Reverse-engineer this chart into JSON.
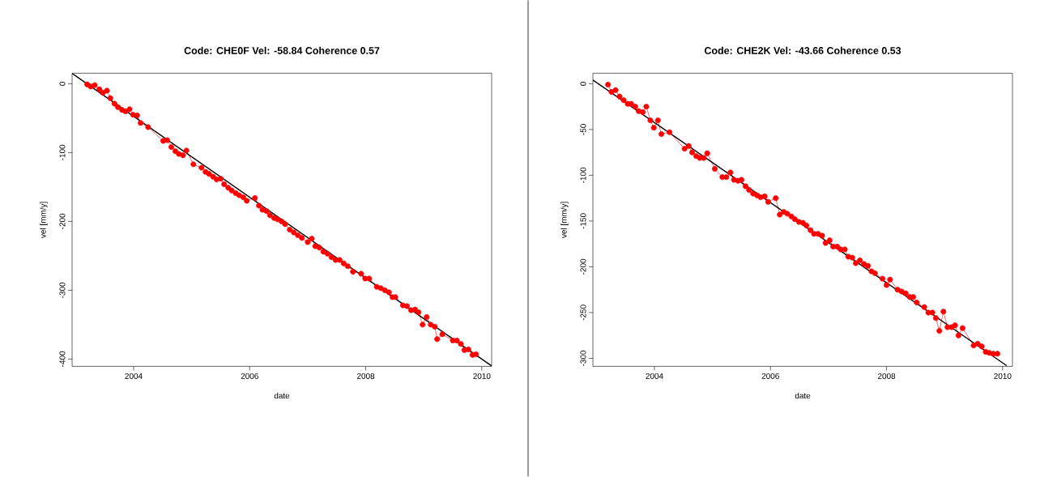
{
  "chart_data": [
    {
      "type": "line",
      "title": "Code: CHE0F Vel: -58.84 Coherence 0.57",
      "xlabel": "date",
      "ylabel": "vel [mm/y]",
      "xlim": [
        2002.94,
        2010.17
      ],
      "ylim": [
        -410.6,
        15.3
      ],
      "xticks": [
        2004,
        2006,
        2008,
        2010
      ],
      "yticks": [
        -400,
        -300,
        -200,
        -100,
        0
      ],
      "series": [
        {
          "color": "#ff0000",
          "marker": "circle",
          "x": [
            2003.2,
            2003.26,
            2003.33,
            2003.41,
            2003.47,
            2003.54,
            2003.6,
            2003.67,
            2003.73,
            2003.8,
            2003.86,
            2003.93,
            2003.99,
            2004.06,
            2004.12,
            2004.25,
            2004.51,
            2004.58,
            2004.65,
            2004.72,
            2004.78,
            2004.85,
            2004.91,
            2005.03,
            2005.17,
            2005.24,
            2005.3,
            2005.37,
            2005.43,
            2005.5,
            2005.56,
            2005.63,
            2005.69,
            2005.76,
            2005.82,
            2005.89,
            2005.95,
            2006.09,
            2006.16,
            2006.22,
            2006.29,
            2006.35,
            2006.42,
            2006.48,
            2006.55,
            2006.61,
            2006.69,
            2006.76,
            2006.83,
            2006.9,
            2007.0,
            2007.07,
            2007.13,
            2007.2,
            2007.27,
            2007.34,
            2007.41,
            2007.48,
            2007.55,
            2007.62,
            2007.69,
            2007.78,
            2007.92,
            2007.99,
            2008.06,
            2008.19,
            2008.26,
            2008.33,
            2008.4,
            2008.46,
            2008.51,
            2008.64,
            2008.71,
            2008.78,
            2008.85,
            2008.91,
            2008.98,
            2009.05,
            2009.12,
            2009.19,
            2009.23,
            2009.32,
            2009.5,
            2009.57,
            2009.64,
            2009.7,
            2009.77,
            2009.84,
            2009.9
          ],
          "values": [
            -1,
            -4,
            -2,
            -8,
            -13,
            -10,
            -21,
            -29,
            -34,
            -38,
            -40,
            -37,
            -45,
            -46,
            -57,
            -63,
            -83,
            -82,
            -92,
            -98,
            -102,
            -104,
            -97,
            -117,
            -122,
            -128,
            -131,
            -135,
            -139,
            -138,
            -146,
            -151,
            -155,
            -159,
            -162,
            -165,
            -170,
            -166,
            -177,
            -183,
            -185,
            -191,
            -195,
            -197,
            -200,
            -204,
            -212,
            -216,
            -220,
            -224,
            -230,
            -225,
            -236,
            -238,
            -244,
            -247,
            -252,
            -256,
            -256,
            -261,
            -265,
            -273,
            -276,
            -283,
            -283,
            -295,
            -297,
            -300,
            -303,
            -310,
            -310,
            -322,
            -323,
            -329,
            -328,
            -332,
            -350,
            -339,
            -350,
            -353,
            -371,
            -364,
            -373,
            -373,
            -378,
            -387,
            -386,
            -394,
            -393
          ]
        },
        {
          "type": "line",
          "color": "#000000",
          "marker": "none",
          "x": [
            2002.94,
            2010.17
          ],
          "values": [
            15,
            -410
          ]
        }
      ]
    },
    {
      "type": "line",
      "title": "Code: CHE2K Vel: -43.66 Coherence 0.53",
      "xlabel": "date",
      "ylabel": "vel [mm/y]",
      "xlim": [
        2002.94,
        2010.17
      ],
      "ylim": [
        -308.8,
        11.5
      ],
      "xticks": [
        2004,
        2006,
        2008,
        2010
      ],
      "yticks": [
        -300,
        -250,
        -200,
        -150,
        -100,
        -50,
        0
      ],
      "series": [
        {
          "color": "#ff0000",
          "marker": "circle",
          "x": [
            2003.2,
            2003.26,
            2003.33,
            2003.4,
            2003.47,
            2003.54,
            2003.6,
            2003.67,
            2003.73,
            2003.8,
            2003.86,
            2003.93,
            2003.99,
            2004.06,
            2004.12,
            2004.26,
            2004.52,
            2004.59,
            2004.65,
            2004.72,
            2004.78,
            2004.85,
            2004.91,
            2005.04,
            2005.17,
            2005.24,
            2005.31,
            2005.37,
            2005.44,
            2005.5,
            2005.57,
            2005.63,
            2005.7,
            2005.77,
            2005.83,
            2005.9,
            2005.96,
            2006.09,
            2006.16,
            2006.23,
            2006.29,
            2006.36,
            2006.42,
            2006.49,
            2006.56,
            2006.62,
            2006.69,
            2006.75,
            2006.82,
            2006.89,
            2006.95,
            2007.02,
            2007.08,
            2007.15,
            2007.21,
            2007.28,
            2007.34,
            2007.41,
            2007.47,
            2007.54,
            2007.61,
            2007.68,
            2007.74,
            2007.8,
            2007.93,
            2008.0,
            2008.06,
            2008.19,
            2008.26,
            2008.33,
            2008.4,
            2008.46,
            2008.52,
            2008.65,
            2008.72,
            2008.79,
            2008.85,
            2008.91,
            2008.98,
            2009.05,
            2009.12,
            2009.18,
            2009.24,
            2009.31,
            2009.5,
            2009.57,
            2009.64,
            2009.71,
            2009.77,
            2009.84,
            2009.91
          ],
          "values": [
            -1,
            -9,
            -7,
            -14,
            -18,
            -22,
            -22,
            -25,
            -30,
            -31,
            -25,
            -40,
            -48,
            -40,
            -55,
            -53,
            -71,
            -68,
            -75,
            -79,
            -81,
            -81,
            -76,
            -93,
            -102,
            -102,
            -97,
            -105,
            -106,
            -105,
            -112,
            -116,
            -120,
            -122,
            -124,
            -123,
            -129,
            -125,
            -143,
            -140,
            -142,
            -145,
            -148,
            -151,
            -152,
            -155,
            -160,
            -164,
            -164,
            -166,
            -174,
            -171,
            -178,
            -178,
            -181,
            -181,
            -189,
            -190,
            -196,
            -193,
            -197,
            -199,
            -205,
            -207,
            -213,
            -220,
            -214,
            -225,
            -227,
            -229,
            -233,
            -233,
            -239,
            -244,
            -250,
            -250,
            -256,
            -270,
            -249,
            -266,
            -266,
            -264,
            -275,
            -267,
            -286,
            -284,
            -287,
            -293,
            -294,
            -295,
            -295
          ]
        },
        {
          "type": "line",
          "color": "#000000",
          "marker": "none",
          "x": [
            2002.94,
            2010.07
          ],
          "values": [
            4,
            -308
          ]
        }
      ]
    }
  ]
}
